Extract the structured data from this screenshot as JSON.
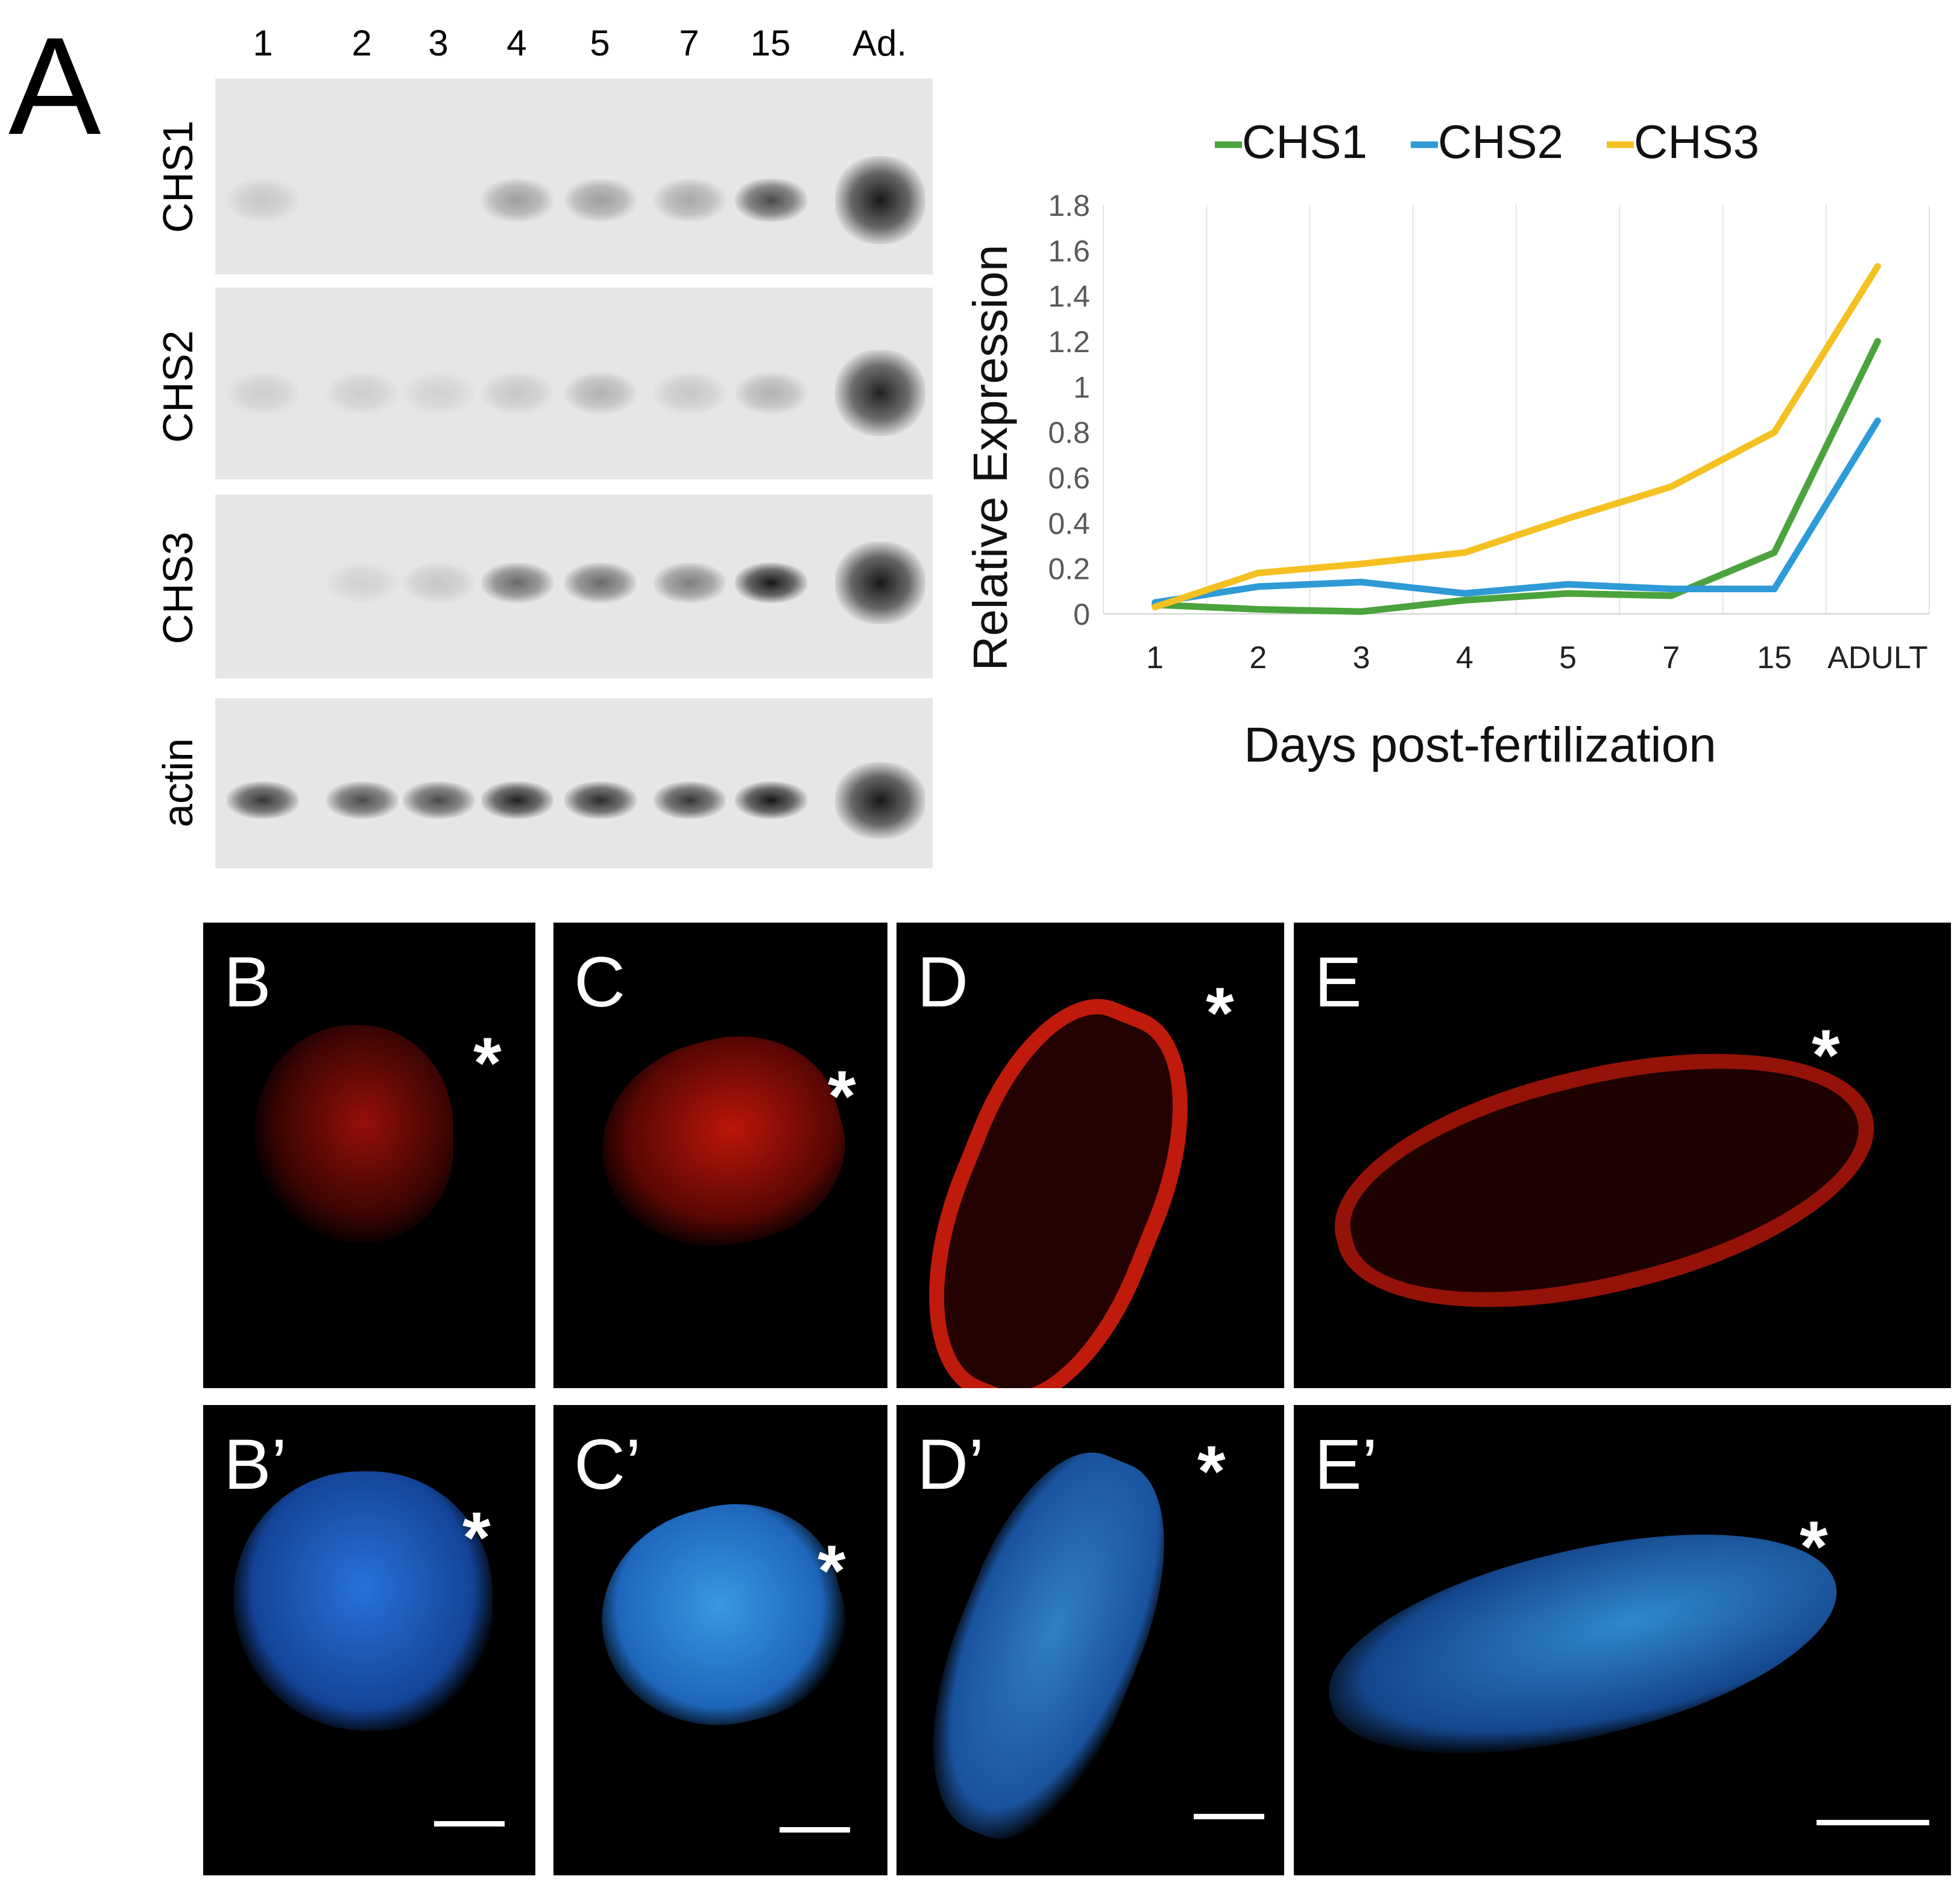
{
  "panel_a": {
    "letter": "A",
    "lanes": [
      "1",
      "2",
      "3",
      "4",
      "5",
      "7",
      "15",
      "Ad."
    ],
    "gels": [
      {
        "label": "CHS1",
        "intensity": [
          0.15,
          0.0,
          0.0,
          0.35,
          0.35,
          0.3,
          0.75,
          1.0
        ]
      },
      {
        "label": "CHS2",
        "intensity": [
          0.12,
          0.12,
          0.1,
          0.15,
          0.25,
          0.15,
          0.25,
          0.95
        ]
      },
      {
        "label": "CHS3",
        "intensity": [
          0.0,
          0.1,
          0.15,
          0.6,
          0.6,
          0.5,
          1.0,
          1.0
        ]
      },
      {
        "label": "actin",
        "intensity": [
          0.85,
          0.75,
          0.75,
          0.95,
          0.9,
          0.85,
          1.0,
          1.0
        ]
      }
    ]
  },
  "chart_data": {
    "type": "line",
    "xlabel": "Days post-fertilization",
    "ylabel": "Relative Expression",
    "categories": [
      "1",
      "2",
      "3",
      "4",
      "5",
      "7",
      "15",
      "ADULT"
    ],
    "ylim": [
      0,
      1.8
    ],
    "yticks": [
      "0",
      "0.2",
      "0.4",
      "0.6",
      "0.8",
      "1",
      "1.2",
      "1.4",
      "1.6",
      "1.8"
    ],
    "ytick_values": [
      0,
      0.2,
      0.4,
      0.6,
      0.8,
      1.0,
      1.2,
      1.4,
      1.6,
      1.8
    ],
    "legend_position": "top",
    "grid": "vertical",
    "series": [
      {
        "name": "CHS1",
        "color": "#4aa33c",
        "values": [
          0.04,
          0.02,
          0.01,
          0.06,
          0.09,
          0.08,
          0.27,
          1.2
        ]
      },
      {
        "name": "CHS2",
        "color": "#2e9ad6",
        "values": [
          0.05,
          0.12,
          0.14,
          0.09,
          0.13,
          0.11,
          0.11,
          0.85
        ]
      },
      {
        "name": "CHS3",
        "color": "#f5c021",
        "values": [
          0.03,
          0.18,
          0.22,
          0.27,
          0.42,
          0.56,
          0.8,
          1.53
        ]
      }
    ]
  },
  "micrographs": {
    "top": [
      {
        "letter": "B",
        "color": "#e0140a",
        "asterisk": "*"
      },
      {
        "letter": "C",
        "color": "#e0140a",
        "asterisk": "*"
      },
      {
        "letter": "D",
        "color": "#e0140a",
        "asterisk": "*"
      },
      {
        "letter": "E",
        "color": "#e0140a",
        "asterisk": "*"
      }
    ],
    "bottom": [
      {
        "letter": "B’",
        "color": "#1e7fe0",
        "asterisk": "*"
      },
      {
        "letter": "C’",
        "color": "#1e7fe0",
        "asterisk": "*"
      },
      {
        "letter": "D’",
        "color": "#1e7fe0",
        "asterisk": "*"
      },
      {
        "letter": "E’",
        "color": "#1e7fe0",
        "asterisk": "*"
      }
    ]
  }
}
